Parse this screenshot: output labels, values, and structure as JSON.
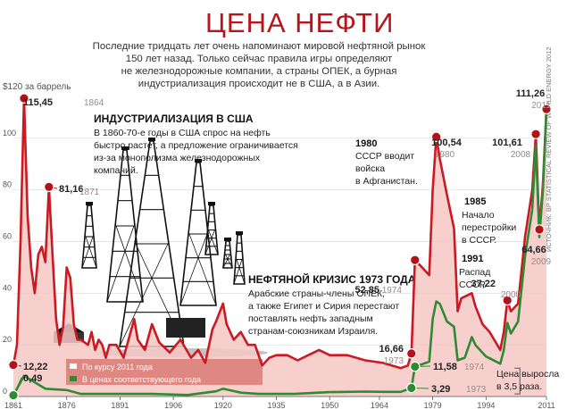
{
  "header": {
    "title": "ЦЕНА НЕФТИ",
    "subtitle": [
      "Последние тридцать лет очень напоминают мировой нефтяной рынок",
      "150 лет назад. Только сейчас правила игры определяют",
      "не железнодорожные компании, а страны ОПЕК, а бурная",
      "индустриализация происходит не в США, а в Азии."
    ]
  },
  "colors": {
    "nominal_line": "#2e8b33",
    "real_line": "#cc1a22",
    "real_fill": "#f6c7c4",
    "marker": "#b4121a",
    "title": "#b5151b"
  },
  "source": "ИСТОЧНИК: BP STATISTICAL REVIEW OF WORLD ENERGY 2012",
  "annotations": {
    "industrialization": {
      "title": "ИНДУСТРИАЛИЗАЦИЯ В США",
      "lines": [
        "В 1860-70-е годы в США спрос на нефть",
        "быстро растет, а предложение ограничивается",
        "из-за монополизма железнодорожных",
        "компаний."
      ]
    },
    "crisis": {
      "title": "НЕФТЯНОЙ КРИЗИС 1973 ГОДА",
      "lines": [
        "Арабские страны-члены ОПЕК,",
        "а также Египет и Сирия перестают",
        "поставлять нефть западным",
        "странам-союзникам Израиля."
      ]
    },
    "afghanistan": {
      "year": "1980",
      "lines": [
        "СССР вводит",
        "войска",
        "в Афганистан."
      ]
    },
    "perestroika": {
      "year": "1985",
      "lines": [
        "Начало",
        "перестройки",
        "в СССР."
      ]
    },
    "ussr": {
      "year": "1991",
      "lines": [
        "Распад",
        "СССР."
      ]
    },
    "growth": {
      "lines": [
        "Цена выросла",
        "в 3,5 раза."
      ]
    }
  },
  "chart_data": {
    "type": "area",
    "title": "ЦЕНА НЕФТИ",
    "ylabel": "$120 за баррель",
    "xlim": [
      1861,
      2011
    ],
    "ylim": [
      0,
      120
    ],
    "x_ticks": [
      "1861",
      "1876",
      "1891",
      "1906",
      "1920",
      "1935",
      "1950",
      "1964",
      "1979",
      "1994",
      "2011"
    ],
    "y_ticks": [
      "0",
      "20",
      "40",
      "60",
      "80",
      "100"
    ],
    "top_y_label": "$120 за баррель",
    "legend": [
      "По курсу 2011 года",
      "В ценах соответствующего года"
    ],
    "series": [
      {
        "name": "По курсу 2011 года",
        "x": [
          1861,
          1862,
          1863,
          1864,
          1865,
          1866,
          1867,
          1868,
          1869,
          1870,
          1871,
          1872,
          1873,
          1874,
          1875,
          1876,
          1877,
          1878,
          1879,
          1880,
          1881,
          1882,
          1883,
          1884,
          1885,
          1886,
          1887,
          1888,
          1889,
          1890,
          1892,
          1895,
          1896,
          1898,
          1900,
          1902,
          1905,
          1908,
          1911,
          1913,
          1915,
          1917,
          1918,
          1920,
          1921,
          1923,
          1925,
          1927,
          1929,
          1931,
          1933,
          1935,
          1938,
          1941,
          1944,
          1947,
          1950,
          1955,
          1960,
          1965,
          1970,
          1972,
          1973,
          1974,
          1976,
          1978,
          1979,
          1980,
          1981,
          1983,
          1985,
          1986,
          1987,
          1990,
          1991,
          1993,
          1995,
          1998,
          1999,
          2000,
          2001,
          2003,
          2005,
          2007,
          2008,
          2009,
          2010,
          2011
        ],
        "values": [
          12.22,
          20,
          60,
          115.45,
          70,
          50,
          40,
          55,
          58,
          52,
          81.16,
          55,
          30,
          20,
          27,
          50,
          46,
          28,
          22,
          22,
          21,
          20,
          25,
          18,
          22,
          20,
          15,
          20,
          20,
          20,
          15,
          30,
          22,
          18,
          28,
          21,
          17,
          22,
          15,
          18,
          13,
          26,
          29,
          36,
          28,
          22,
          25,
          20,
          20,
          12,
          15,
          16,
          16,
          14,
          16,
          18,
          16,
          16,
          14,
          13,
          11,
          12,
          16.66,
          52.85,
          50,
          47,
          80,
          100.54,
          92,
          78,
          65,
          33,
          38,
          40,
          35,
          28,
          25,
          18,
          25,
          37.22,
          33,
          36,
          62,
          80,
          101.61,
          64.66,
          82,
          111.26
        ]
      },
      {
        "name": "В ценах соответствующего года",
        "x": [
          1861,
          1864,
          1870,
          1876,
          1880,
          1890,
          1900,
          1910,
          1918,
          1920,
          1925,
          1930,
          1940,
          1950,
          1960,
          1965,
          1970,
          1973,
          1974,
          1976,
          1978,
          1979,
          1980,
          1981,
          1983,
          1985,
          1986,
          1988,
          1990,
          1991,
          1994,
          1998,
          1999,
          2000,
          2001,
          2003,
          2005,
          2007,
          2008,
          2009,
          2010,
          2011
        ],
        "values": [
          0.49,
          8,
          3,
          2.5,
          1,
          1,
          1,
          0.6,
          2,
          3,
          1.5,
          1,
          1,
          1.7,
          1.9,
          1.8,
          1.8,
          3.29,
          11.58,
          12.5,
          13.5,
          30,
          36.8,
          35.9,
          29,
          27,
          14,
          15,
          23,
          20,
          15.5,
          12.7,
          17.9,
          28.5,
          24.4,
          29,
          54.5,
          72.4,
          97.3,
          61.7,
          79.5,
          111.26
        ]
      }
    ],
    "labels": [
      {
        "value": "115,45",
        "year": "1864"
      },
      {
        "value": "81,16",
        "year": "1871"
      },
      {
        "value": "12,22",
        "year": ""
      },
      {
        "value": "0,49",
        "year": ""
      },
      {
        "value": "52,85",
        "year": "1974"
      },
      {
        "value": "16,66",
        "year": "1973"
      },
      {
        "value": "11,58",
        "year": "1974"
      },
      {
        "value": "3,29",
        "year": "1973"
      },
      {
        "value": "100,54",
        "year": "1980"
      },
      {
        "value": "101,61",
        "year": "2008"
      },
      {
        "value": "37,22",
        "year": "2000"
      },
      {
        "value": "111,26",
        "year": "2011"
      },
      {
        "value": "64,66",
        "year": "2009"
      }
    ]
  }
}
